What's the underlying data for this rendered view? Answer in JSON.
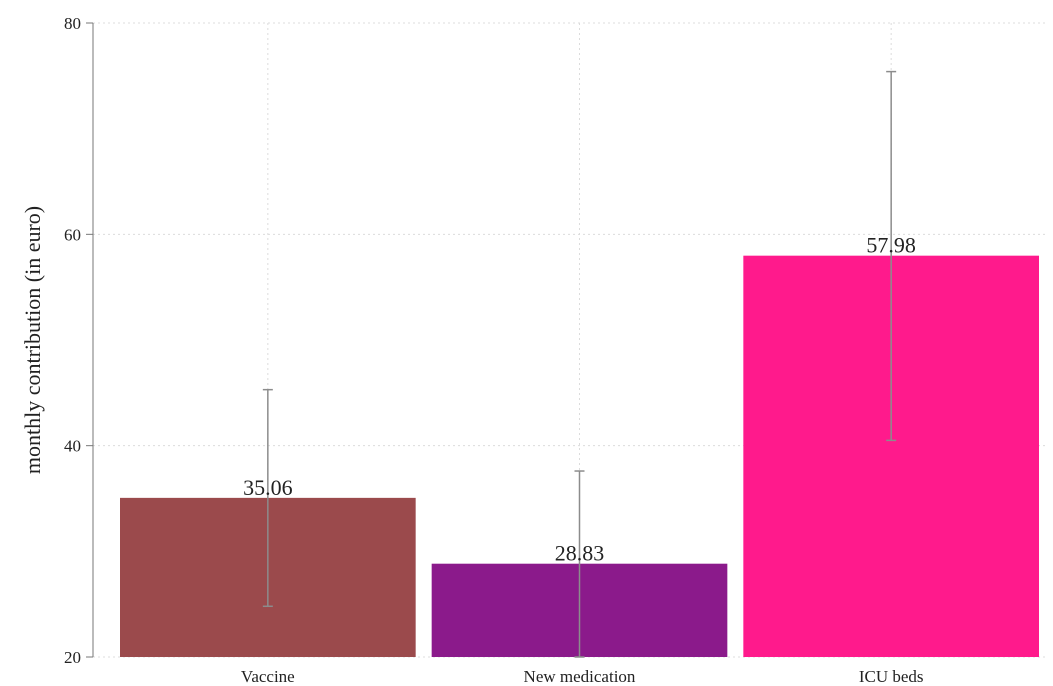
{
  "chart_data": {
    "type": "bar",
    "title": "",
    "xlabel": "",
    "ylabel": "monthly contribution (in euro)",
    "ylim": [
      20,
      80
    ],
    "yticks": [
      20,
      40,
      60,
      80
    ],
    "grid": true,
    "categories": [
      "Vaccine",
      "New medication",
      "ICU beds"
    ],
    "values": [
      35.06,
      28.83,
      57.98
    ],
    "value_labels": [
      "35.06",
      "28.83",
      "57.98"
    ],
    "error_bars": [
      {
        "low": 24.8,
        "high": 45.3
      },
      {
        "low": 20.0,
        "high": 37.6
      },
      {
        "low": 40.5,
        "high": 75.4
      }
    ],
    "colors": [
      "#9b4a4c",
      "#8b1a8b",
      "#ff1a8c"
    ],
    "error_bar_color": "#8c8c8c",
    "grid_color": "#dcdcdc",
    "axis_color": "#777777"
  }
}
